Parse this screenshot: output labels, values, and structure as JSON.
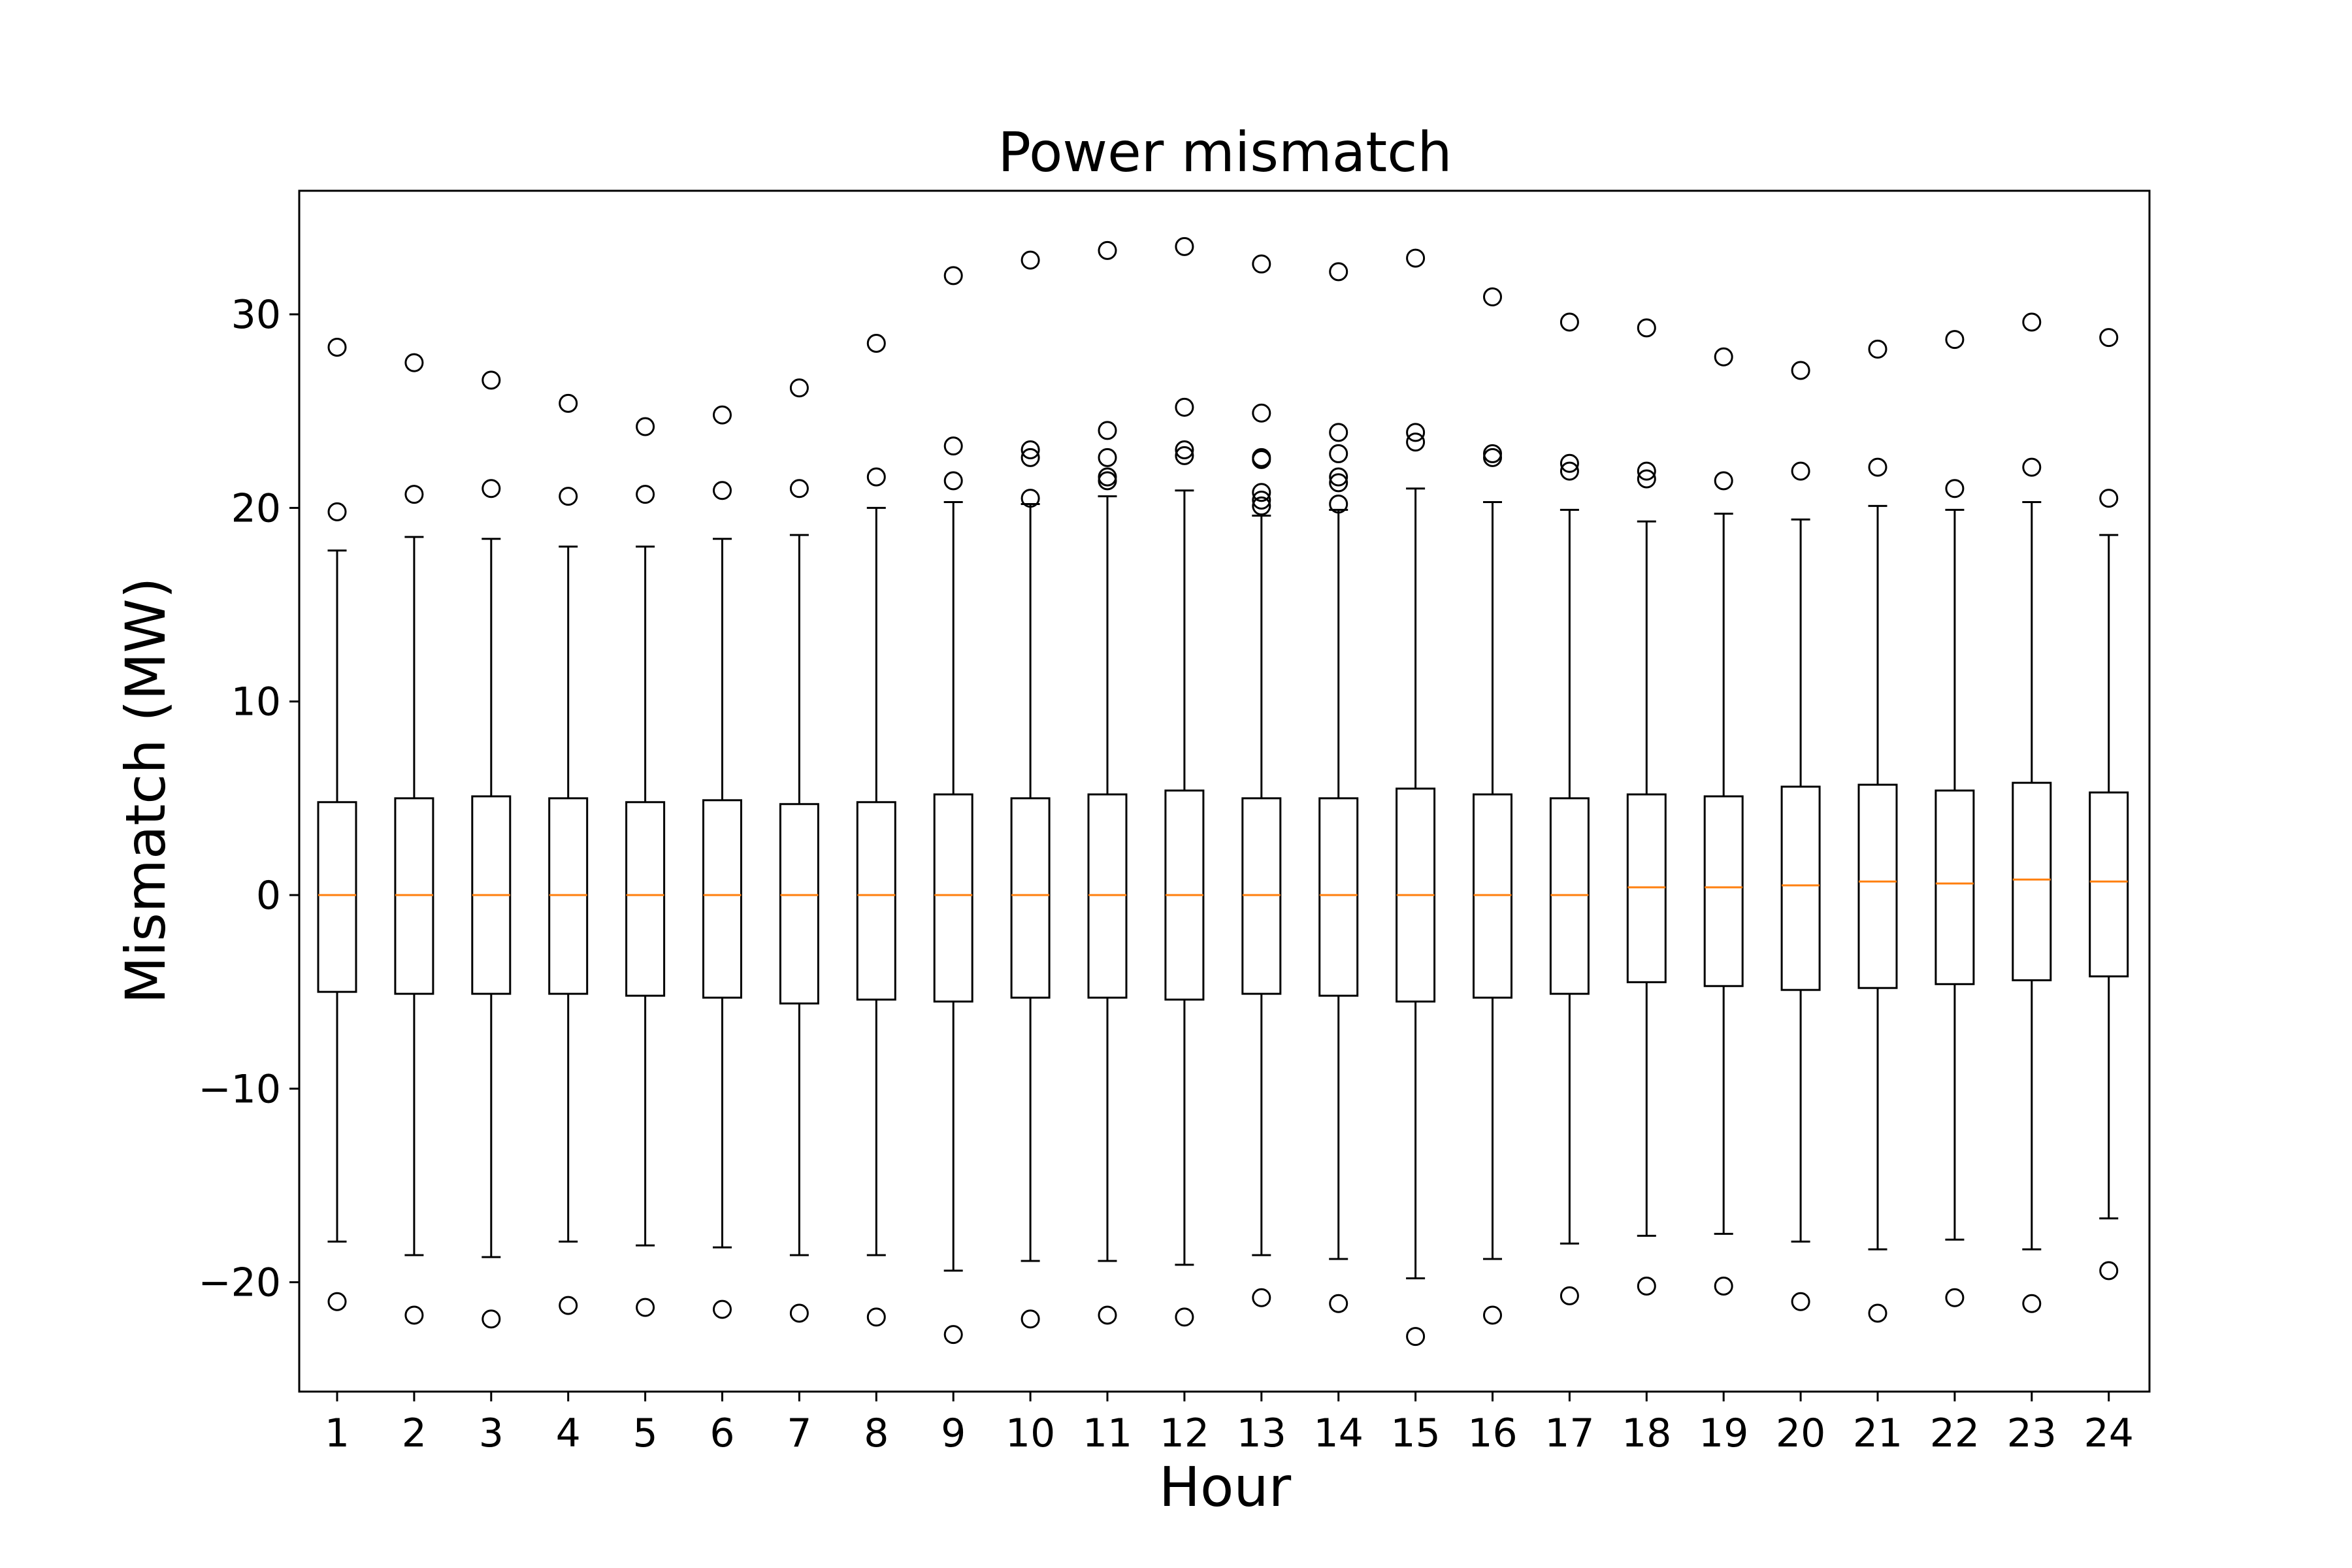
{
  "chart_data": {
    "type": "boxplot",
    "title": "Power mismatch",
    "xlabel": "Hour",
    "ylabel": "Mismatch (MW)",
    "ylim": [
      -25.8,
      36.2
    ],
    "yticks": [
      -20,
      -10,
      0,
      10,
      20,
      30
    ],
    "ytick_labels": [
      "−20",
      "−10",
      "0",
      "10",
      "20",
      "30"
    ],
    "categories": [
      "1",
      "2",
      "3",
      "4",
      "5",
      "6",
      "7",
      "8",
      "9",
      "10",
      "11",
      "12",
      "13",
      "14",
      "15",
      "16",
      "17",
      "18",
      "19",
      "20",
      "21",
      "22",
      "23",
      "24"
    ],
    "grid": false,
    "colors": {
      "box": "#000000",
      "median": "#ff7f0e",
      "outlier": "#000000"
    },
    "boxes": [
      {
        "whislo": -17.9,
        "q1": -5.0,
        "med": 0.0,
        "q3": 4.8,
        "whishi": 17.8,
        "fliers": [
          28.3,
          19.8,
          -21.0
        ]
      },
      {
        "whislo": -18.6,
        "q1": -5.1,
        "med": 0.0,
        "q3": 5.0,
        "whishi": 18.5,
        "fliers": [
          27.5,
          20.7,
          -21.7
        ]
      },
      {
        "whislo": -18.7,
        "q1": -5.1,
        "med": 0.0,
        "q3": 5.1,
        "whishi": 18.4,
        "fliers": [
          26.6,
          21.0,
          -21.9
        ]
      },
      {
        "whislo": -17.9,
        "q1": -5.1,
        "med": 0.0,
        "q3": 5.0,
        "whishi": 18.0,
        "fliers": [
          25.4,
          20.6,
          -21.2
        ]
      },
      {
        "whislo": -18.1,
        "q1": -5.2,
        "med": 0.0,
        "q3": 4.8,
        "whishi": 18.0,
        "fliers": [
          24.2,
          20.7,
          -21.3
        ]
      },
      {
        "whislo": -18.2,
        "q1": -5.3,
        "med": 0.0,
        "q3": 4.9,
        "whishi": 18.4,
        "fliers": [
          24.8,
          20.9,
          -21.4
        ]
      },
      {
        "whislo": -18.6,
        "q1": -5.6,
        "med": 0.0,
        "q3": 4.7,
        "whishi": 18.6,
        "fliers": [
          26.2,
          21.0,
          -21.6
        ]
      },
      {
        "whislo": -18.6,
        "q1": -5.4,
        "med": 0.0,
        "q3": 4.8,
        "whishi": 20.0,
        "fliers": [
          28.5,
          21.6,
          -21.8
        ]
      },
      {
        "whislo": -19.4,
        "q1": -5.5,
        "med": 0.0,
        "q3": 5.2,
        "whishi": 20.3,
        "fliers": [
          32.0,
          23.2,
          21.4,
          -22.7
        ]
      },
      {
        "whislo": -18.9,
        "q1": -5.3,
        "med": 0.0,
        "q3": 5.0,
        "whishi": 20.2,
        "fliers": [
          32.8,
          23.0,
          22.6,
          20.5,
          -21.9
        ]
      },
      {
        "whislo": -18.9,
        "q1": -5.3,
        "med": 0.0,
        "q3": 5.2,
        "whishi": 20.6,
        "fliers": [
          33.3,
          24.0,
          22.6,
          21.6,
          21.4,
          -21.7
        ]
      },
      {
        "whislo": -19.1,
        "q1": -5.4,
        "med": 0.0,
        "q3": 5.4,
        "whishi": 20.9,
        "fliers": [
          33.5,
          25.2,
          23.0,
          22.7,
          -21.8
        ]
      },
      {
        "whislo": -18.6,
        "q1": -5.1,
        "med": 0.0,
        "q3": 5.0,
        "whishi": 19.6,
        "fliers": [
          32.6,
          24.9,
          22.6,
          22.5,
          20.8,
          20.4,
          20.1,
          -20.8
        ]
      },
      {
        "whislo": -18.8,
        "q1": -5.2,
        "med": 0.0,
        "q3": 5.0,
        "whishi": 19.9,
        "fliers": [
          32.2,
          23.9,
          22.8,
          21.6,
          21.3,
          20.2,
          -21.1
        ]
      },
      {
        "whislo": -19.8,
        "q1": -5.5,
        "med": 0.0,
        "q3": 5.5,
        "whishi": 21.0,
        "fliers": [
          32.9,
          23.9,
          23.4,
          -22.8
        ]
      },
      {
        "whislo": -18.8,
        "q1": -5.3,
        "med": 0.0,
        "q3": 5.2,
        "whishi": 20.3,
        "fliers": [
          30.9,
          22.8,
          22.6,
          -21.7
        ]
      },
      {
        "whislo": -18.0,
        "q1": -5.1,
        "med": 0.0,
        "q3": 5.0,
        "whishi": 19.9,
        "fliers": [
          29.6,
          22.3,
          21.9,
          -20.7
        ]
      },
      {
        "whislo": -17.6,
        "q1": -4.5,
        "med": 0.4,
        "q3": 5.2,
        "whishi": 19.3,
        "fliers": [
          29.3,
          21.9,
          21.5,
          -20.2
        ]
      },
      {
        "whislo": -17.5,
        "q1": -4.7,
        "med": 0.4,
        "q3": 5.1,
        "whishi": 19.7,
        "fliers": [
          27.8,
          21.4,
          -20.2
        ]
      },
      {
        "whislo": -17.9,
        "q1": -4.9,
        "med": 0.5,
        "q3": 5.6,
        "whishi": 19.4,
        "fliers": [
          27.1,
          21.9,
          -21.0
        ]
      },
      {
        "whislo": -18.3,
        "q1": -4.8,
        "med": 0.7,
        "q3": 5.7,
        "whishi": 20.1,
        "fliers": [
          28.2,
          22.1,
          -21.6
        ]
      },
      {
        "whislo": -17.8,
        "q1": -4.6,
        "med": 0.6,
        "q3": 5.4,
        "whishi": 19.9,
        "fliers": [
          28.7,
          21.0,
          -20.8
        ]
      },
      {
        "whislo": -18.3,
        "q1": -4.4,
        "med": 0.8,
        "q3": 5.8,
        "whishi": 20.3,
        "fliers": [
          29.6,
          22.1,
          -21.1
        ]
      },
      {
        "whislo": -16.7,
        "q1": -4.2,
        "med": 0.7,
        "q3": 5.3,
        "whishi": 18.6,
        "fliers": [
          28.8,
          20.5,
          -19.4
        ]
      }
    ]
  }
}
